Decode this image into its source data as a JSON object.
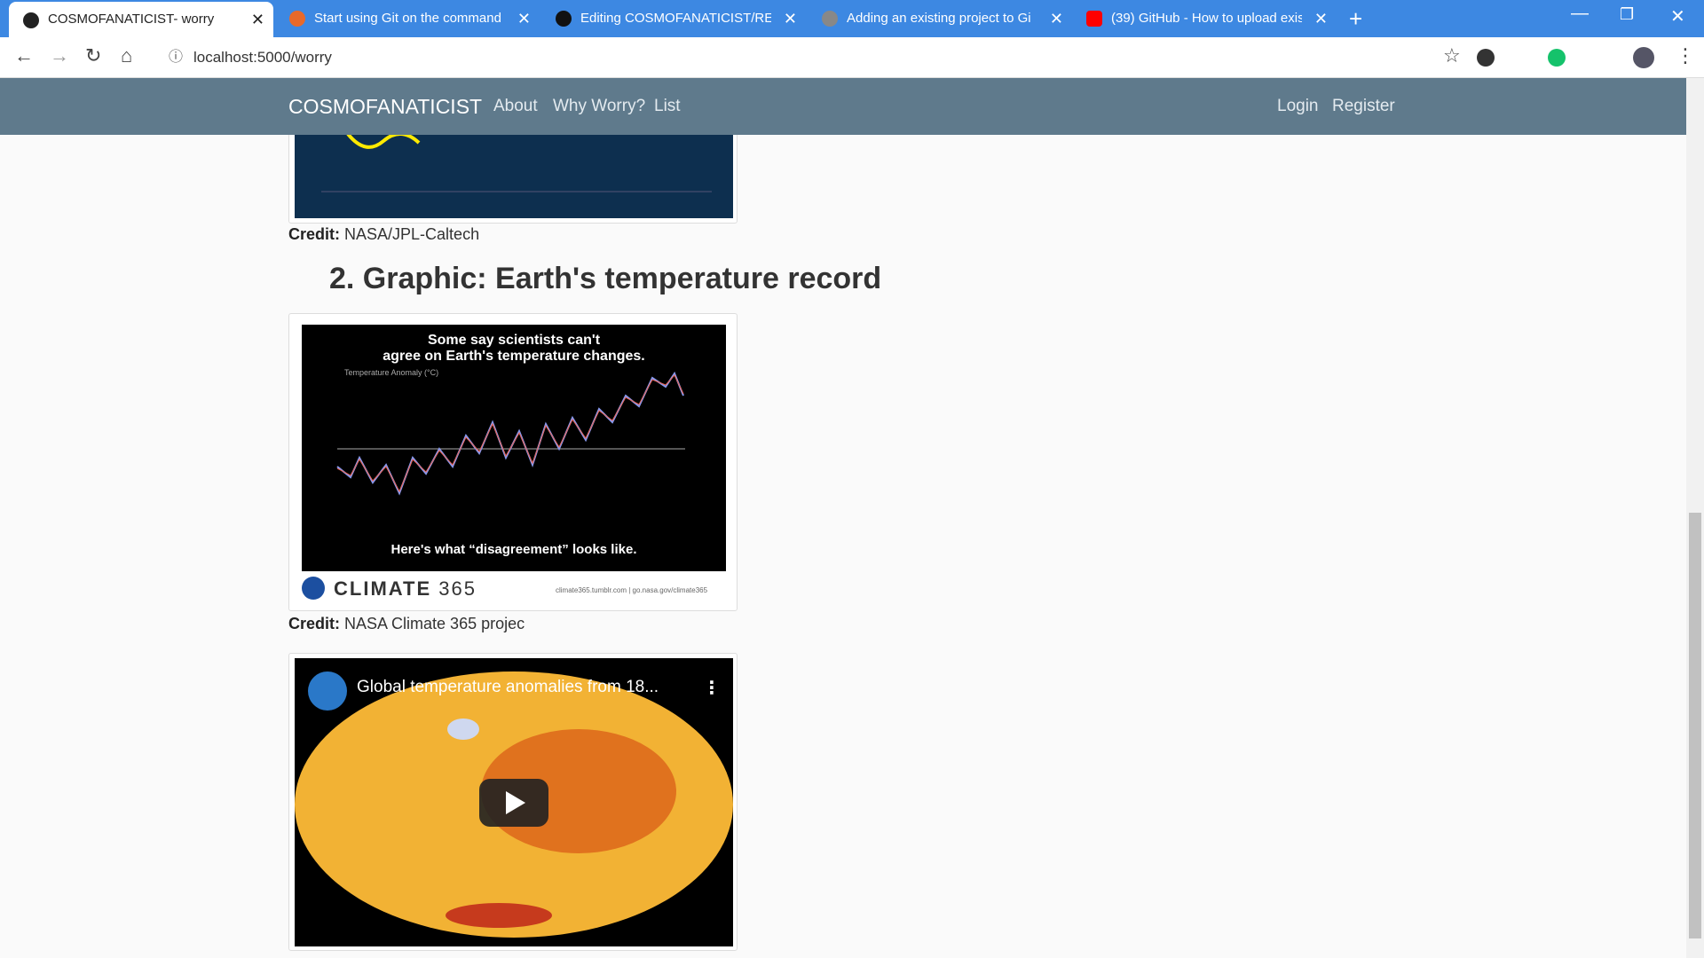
{
  "browser": {
    "tabs": [
      "COSMOFANATICIST- worry",
      "Start using Git on the command l",
      "Editing COSMOFANATICIST/REA",
      "Adding an existing project to Gi",
      "(39) GitHub - How to upload exis"
    ],
    "url": "localhost:5000/worry"
  },
  "navbar": {
    "brand": "COSMOFANATICIST",
    "links": [
      "About",
      "Why Worry?",
      "List"
    ],
    "auth": [
      "Login",
      "Register"
    ]
  },
  "content": {
    "credit_label": "Credit:",
    "credit_1": "NASA/JPL-Caltech",
    "heading": "2. Graphic: Earth's temperature record",
    "graphic": {
      "title_1": "Some say scientists can't",
      "title_2": "agree on Earth's temperature changes.",
      "axis_label": "Temperature Anomaly (°C)",
      "caption": "Here's what “disagreement” looks like.",
      "brand": "CLIMATE",
      "brand_num": "365",
      "source": "climate365.tumblr.com | go.nasa.gov/climate365"
    },
    "credit_2": "NASA Climate 365 projec",
    "video": {
      "title": "Global temperature anomalies from 18..."
    }
  }
}
